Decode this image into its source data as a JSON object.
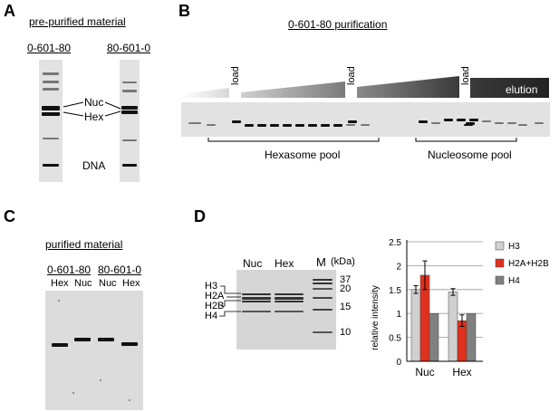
{
  "panel_labels": [
    "A",
    "B",
    "C",
    "D"
  ],
  "panelA": {
    "title": "pre-purified material",
    "lane_labels": [
      "0-601-80",
      "80-601-0"
    ],
    "band_labels": {
      "nuc": "Nuc",
      "hex": "Hex",
      "dna": "DNA"
    }
  },
  "panelB": {
    "title": "0-601-80 purification",
    "load_labels": [
      "load",
      "load",
      "load"
    ],
    "elution_label": "elution",
    "pools": [
      "Hexasome pool",
      "Nucleosome pool"
    ]
  },
  "panelC": {
    "title": "purified material",
    "group_labels": [
      "0-601-80",
      "80-601-0"
    ],
    "lane_labels": [
      "Hex",
      "Nuc",
      "Nuc",
      "Hex"
    ]
  },
  "panelD": {
    "gel_lane_labels": [
      "Nuc",
      "Hex",
      "M"
    ],
    "kda_label": "(kDa)",
    "marker_values": [
      "37",
      "20",
      "15",
      "10"
    ],
    "histone_labels": [
      "H3",
      "H2A",
      "H2B",
      "H4"
    ]
  },
  "chart_data": {
    "type": "bar",
    "categories": [
      "Nuc",
      "Hex"
    ],
    "series": [
      {
        "name": "H3",
        "values": [
          1.5,
          1.45
        ],
        "errors": [
          0.08,
          0.07
        ],
        "color": "#d0d0d0"
      },
      {
        "name": "H2A+H2B",
        "values": [
          1.8,
          0.85
        ],
        "errors": [
          0.3,
          0.12
        ],
        "color": "#e0301e"
      },
      {
        "name": "H4",
        "values": [
          1.0,
          1.0
        ],
        "errors": [
          0,
          0
        ],
        "color": "#808080"
      }
    ],
    "ylabel": "relative intensity",
    "ylim": [
      0,
      2.5
    ],
    "yticks": [
      "0",
      "0.5",
      "1",
      "1.5",
      "2",
      "2.5"
    ],
    "legend_position": "right",
    "grid": true
  }
}
